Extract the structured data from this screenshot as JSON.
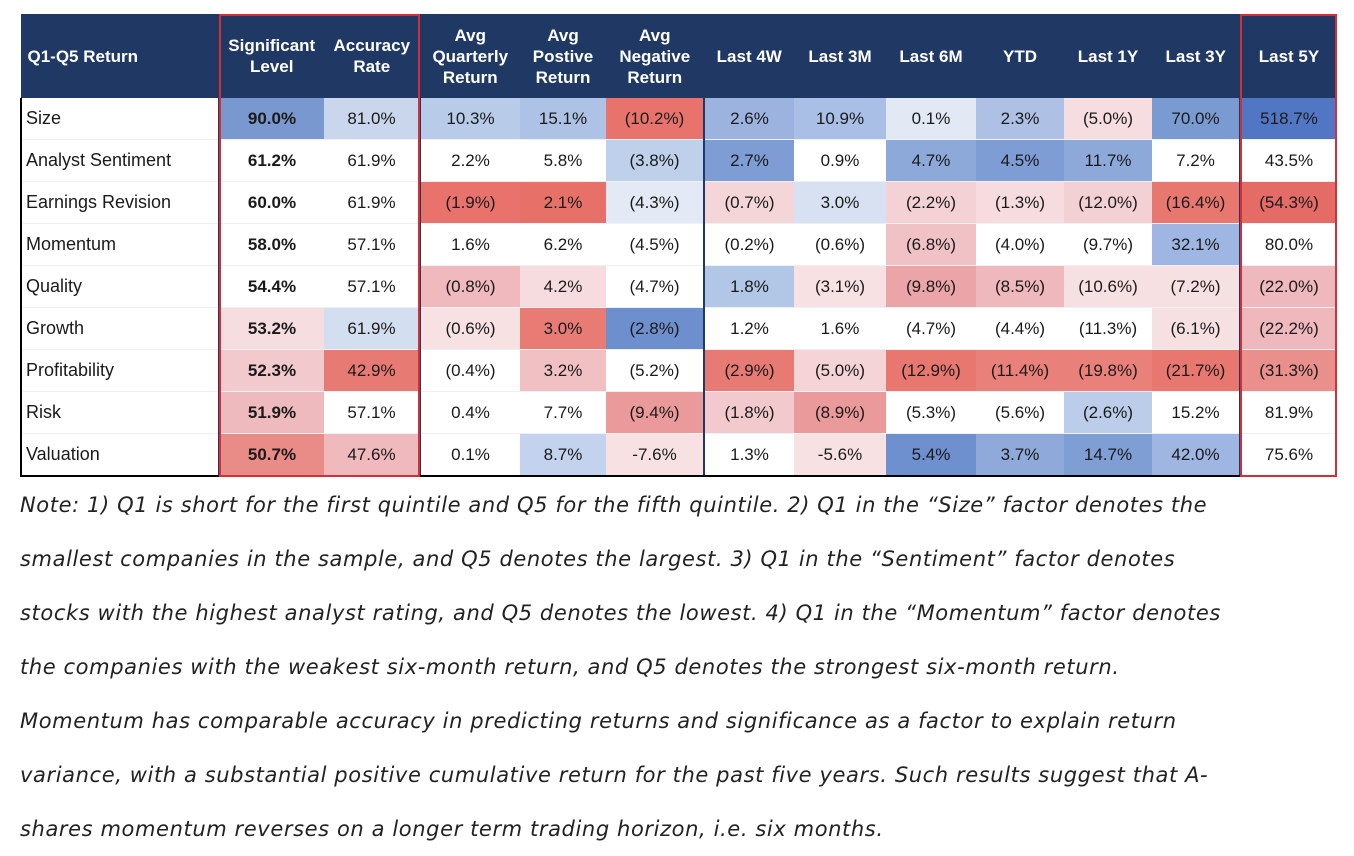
{
  "chart_data": {
    "type": "table",
    "columns": [
      "Q1-Q5 Return",
      [
        "Significant",
        "Level"
      ],
      [
        "Accuracy",
        "Rate"
      ],
      [
        "Avg",
        "Quarterly",
        "Return"
      ],
      [
        "Avg",
        "Postive",
        "Return"
      ],
      [
        "Avg",
        "Negative",
        "Return"
      ],
      "Last 4W",
      "Last 3M",
      "Last 6M",
      "YTD",
      "Last 1Y",
      "Last 3Y",
      "Last 5Y"
    ],
    "rows": [
      {
        "label": "Size",
        "cells": [
          "90.0%",
          "81.0%",
          "10.3%",
          "15.1%",
          "(10.2%)",
          "2.6%",
          "10.9%",
          "0.1%",
          "2.3%",
          "(5.0%)",
          "70.0%",
          "518.7%"
        ],
        "colors": [
          "#7a98d0",
          "#c9d6ec",
          "#b8cbe8",
          "#aec2e6",
          "#e8736c",
          "#9cb3e0",
          "#a9bfe5",
          "#e2e9f5",
          "#aec1e4",
          "#f6dde0",
          "#7a9ad2",
          "#5177c4"
        ]
      },
      {
        "label": "Analyst Sentiment",
        "cells": [
          "61.2%",
          "61.9%",
          "2.2%",
          "5.8%",
          "(3.8%)",
          "2.7%",
          "0.9%",
          "4.7%",
          "4.5%",
          "11.7%",
          "7.2%",
          "43.5%"
        ],
        "colors": [
          "#ffffff",
          "#ffffff",
          "#ffffff",
          "#ffffff",
          "#bfd0ea",
          "#7e9dd4",
          "#ffffff",
          "#8ca9da",
          "#7e9dd4",
          "#8ca9da",
          "#ffffff",
          "#ffffff"
        ]
      },
      {
        "label": "Earnings Revision",
        "cells": [
          "60.0%",
          "61.9%",
          "(1.9%)",
          "2.1%",
          "(4.3%)",
          "(0.7%)",
          "3.0%",
          "(2.2%)",
          "(1.3%)",
          "(12.0%)",
          "(16.4%)",
          "(54.3%)"
        ],
        "colors": [
          "#ffffff",
          "#ffffff",
          "#e9736c",
          "#e77169",
          "#e3e9f5",
          "#f4d6d9",
          "#d7e1f2",
          "#f3d1d4",
          "#f6dcdf",
          "#f3d0d3",
          "#e87770",
          "#e46b66"
        ]
      },
      {
        "label": "Momentum",
        "cells": [
          "58.0%",
          "57.1%",
          "1.6%",
          "6.2%",
          "(4.5%)",
          "(0.2%)",
          "(0.6%)",
          "(6.8%)",
          "(4.0%)",
          "(9.7%)",
          "32.1%",
          "80.0%"
        ],
        "colors": [
          "#ffffff",
          "#ffffff",
          "#ffffff",
          "#ffffff",
          "#ffffff",
          "#ffffff",
          "#ffffff",
          "#f0c2c6",
          "#ffffff",
          "#ffffff",
          "#9eb6e1",
          "#ffffff"
        ]
      },
      {
        "label": "Quality",
        "cells": [
          "54.4%",
          "57.1%",
          "(0.8%)",
          "4.2%",
          "(4.7%)",
          "1.8%",
          "(3.1%)",
          "(9.8%)",
          "(8.5%)",
          "(10.6%)",
          "(7.2%)",
          "(22.0%)"
        ],
        "colors": [
          "#ffffff",
          "#ffffff",
          "#efb9bd",
          "#f6dcdf",
          "#ffffff",
          "#b2c6e6",
          "#f7e1e3",
          "#eba5a9",
          "#efb8bc",
          "#f7e0e2",
          "#f7e0e2",
          "#efb8bc"
        ]
      },
      {
        "label": "Growth",
        "cells": [
          "53.2%",
          "61.9%",
          "(0.6%)",
          "3.0%",
          "(2.8%)",
          "1.2%",
          "1.6%",
          "(4.7%)",
          "(4.4%)",
          "(11.3%)",
          "(6.1%)",
          "(22.2%)"
        ],
        "colors": [
          "#f6dde0",
          "#d4def1",
          "#f7e1e3",
          "#e87c75",
          "#6d8fcd",
          "#ffffff",
          "#ffffff",
          "#ffffff",
          "#ffffff",
          "#ffffff",
          "#f7e0e2",
          "#efb8bc"
        ]
      },
      {
        "label": "Profitability",
        "cells": [
          "52.3%",
          "42.9%",
          "(0.4%)",
          "3.2%",
          "(5.2%)",
          "(2.9%)",
          "(5.0%)",
          "(12.9%)",
          "(11.4%)",
          "(19.8%)",
          "(21.7%)",
          "(31.3%)"
        ],
        "colors": [
          "#f2c9cc",
          "#e77a73",
          "#ffffff",
          "#f0c0c3",
          "#ffffff",
          "#e77a73",
          "#f4d4d7",
          "#e87770",
          "#e98079",
          "#e98079",
          "#e87770",
          "#e98f8c"
        ]
      },
      {
        "label": "Risk",
        "cells": [
          "51.9%",
          "57.1%",
          "0.4%",
          "7.7%",
          "(9.4%)",
          "(1.8%)",
          "(8.9%)",
          "(5.3%)",
          "(5.6%)",
          "(2.6%)",
          "15.2%",
          "81.9%"
        ],
        "colors": [
          "#efbabe",
          "#ffffff",
          "#ffffff",
          "#ffffff",
          "#eb9a9b",
          "#f2cacd",
          "#eb9a9b",
          "#ffffff",
          "#ffffff",
          "#bccde9",
          "#ffffff",
          "#ffffff"
        ]
      },
      {
        "label": "Valuation",
        "cells": [
          "50.7%",
          "47.6%",
          "0.1%",
          "8.7%",
          "-7.6%",
          "1.3%",
          "-5.6%",
          "5.4%",
          "3.7%",
          "14.7%",
          "42.0%",
          "75.6%"
        ],
        "colors": [
          "#e98b87",
          "#efb9bd",
          "#ffffff",
          "#c3d3ed",
          "#f7e1e3",
          "#ffffff",
          "#f7e1e3",
          "#6f90ce",
          "#8ea9da",
          "#7f9ed4",
          "#9eb6e1",
          "#ffffff"
        ]
      }
    ],
    "header_color": "#1f3864",
    "highlight_border_color": "#d0303a"
  },
  "note": {
    "lines": [
      "Note: 1) Q1 is short for the first quintile and Q5 for the fifth quintile. 2) Q1 in the “Size” factor denotes the",
      "smallest companies in the sample, and Q5 denotes the largest. 3) Q1 in the “Sentiment” factor denotes",
      "stocks with the highest analyst rating, and Q5 denotes the lowest. 4) Q1 in the “Momentum” factor denotes",
      "the companies with the weakest six-month return, and Q5 denotes the strongest six-month return.",
      "Momentum has comparable accuracy in predicting returns and significance as a factor to explain return",
      "variance, with a substantial positive cumulative return for the past five years. Such results suggest that A-",
      "shares momentum reverses on a longer term trading horizon, i.e. six months."
    ]
  }
}
